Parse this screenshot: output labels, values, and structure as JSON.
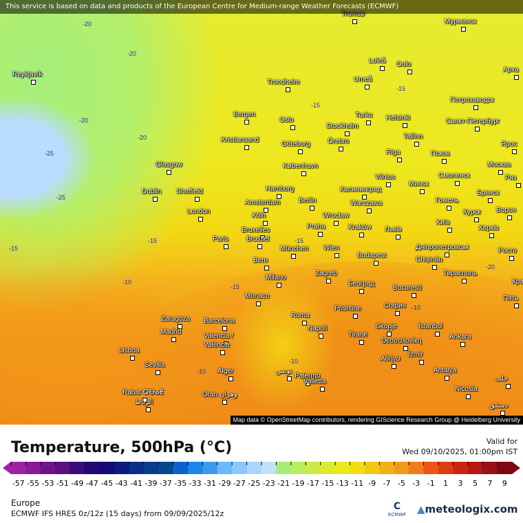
{
  "banner": "This service is based on data and products of the European Centre for Medium-range Weather Forecasts (ECMWF)",
  "attribution": "Map data © OpenStreetMap contributors, rendering GIScience Research Group @ Heidelberg University",
  "title": "Temperature, 500hPa (°C)",
  "valid_label": "Valid for",
  "valid_time": "Wed 09/10/2025, 01:00pm IST",
  "region": "Europe",
  "model": "ECMWF IFS HRES 0z/12z (15 days) from  09/09/2025/12z",
  "ecmwf_logo": "ECMWF",
  "brand": "meteologix.com",
  "legend": {
    "ticks": [
      "-57",
      "-55",
      "-53",
      "-51",
      "-49",
      "-47",
      "-45",
      "-43",
      "-41",
      "-39",
      "-37",
      "-35",
      "-33",
      "-31",
      "-29",
      "-27",
      "-25",
      "-23",
      "-21",
      "-19",
      "-17",
      "-15",
      "-13",
      "-11",
      "-9",
      "-7",
      "-5",
      "-3",
      "-1",
      "1",
      "3",
      "5",
      "7",
      "9"
    ],
    "colors": [
      "#a020a8",
      "#8a1a98",
      "#6e1488",
      "#5a107e",
      "#3a0c7c",
      "#24087a",
      "#16087a",
      "#0e1a80",
      "#08308a",
      "#063e8a",
      "#064890",
      "#0a62cc",
      "#1a86e8",
      "#3a9af0",
      "#6ab8fa",
      "#8cc8fc",
      "#aad6fe",
      "#c0e2fe",
      "#a6ec78",
      "#b8ee60",
      "#cceb48",
      "#dcea32",
      "#ece820",
      "#f2dc12",
      "#f2c814",
      "#f2b016",
      "#f29a18",
      "#f07c1a",
      "#ee5414",
      "#e03c12",
      "#cc2410",
      "#b41812",
      "#9a1014",
      "#7e0810"
    ]
  },
  "map_labels": {
    "cities": [
      "Reykjavík",
      "Tromsø",
      "Мурманск",
      "Luleå",
      "Oulu",
      "Арха",
      "Umeå",
      "Trondheim",
      "Петрозаводск",
      "Bergen",
      "Oslo",
      "Turku",
      "Helsinki",
      "Санкт-Петербург",
      "Stockholm",
      "Kristiansand",
      "Göteborg",
      "Örebro",
      "Tallinn",
      "Ярос",
      "Псков",
      "Riga",
      "Glasgow",
      "København",
      "Москва",
      "Vilnius",
      "Смоленск",
      "Ряз",
      "Калининград",
      "Минск",
      "Hamburg",
      "Dublin",
      "Sheffield",
      "Брянск",
      "Amsterdam",
      "Berlin",
      "Гомель",
      "Warszawa",
      "London",
      "Курск",
      "Ворон",
      "Köln",
      "Wrocław",
      "Київ",
      "Bruxelles",
      "Brussel",
      "Praha",
      "Kraków",
      "Львів",
      "Харків",
      "Paris",
      "Дніпропетровськ",
      "Wien",
      "Росто",
      "München",
      "Chișinău",
      "Budapest",
      "Bern",
      "Тирасполь",
      "Milano",
      "Zagreb",
      "Красно",
      "Београд",
      "Bucuresti",
      "Monaco",
      "Пять",
      "Prishtine",
      "София",
      "Roma",
      "Zaragoza",
      "Barcelona",
      "İstanbul",
      "Skopje",
      "Napoli",
      "Madrid",
      "Tiranë",
      "Θεσσαλονίκη",
      "Ankara",
      "Valencia /",
      "València",
      "Lisboa",
      "İzmir",
      "Αθήνα",
      "Palermo",
      "Sevilla",
      "Alger",
      "تونس",
      "Antalya",
      "Valletta",
      "حلب",
      "Nicosia",
      "Rabat ⵕⴱⴰⵟ",
      "الرباط",
      "Oran وهران",
      "دمشق"
    ],
    "isotherms": [
      "-20",
      "-20",
      "-20",
      "-20",
      "-25",
      "-25",
      "-15",
      "-15",
      "-15",
      "-15",
      "-15",
      "-15",
      "-10",
      "-10",
      "-10",
      "-10",
      "-20"
    ]
  },
  "colors": {
    "cold": "#a6ef7c",
    "mild": "#eee71e",
    "warm": "#f2981c",
    "ice": "#b9dcff"
  }
}
